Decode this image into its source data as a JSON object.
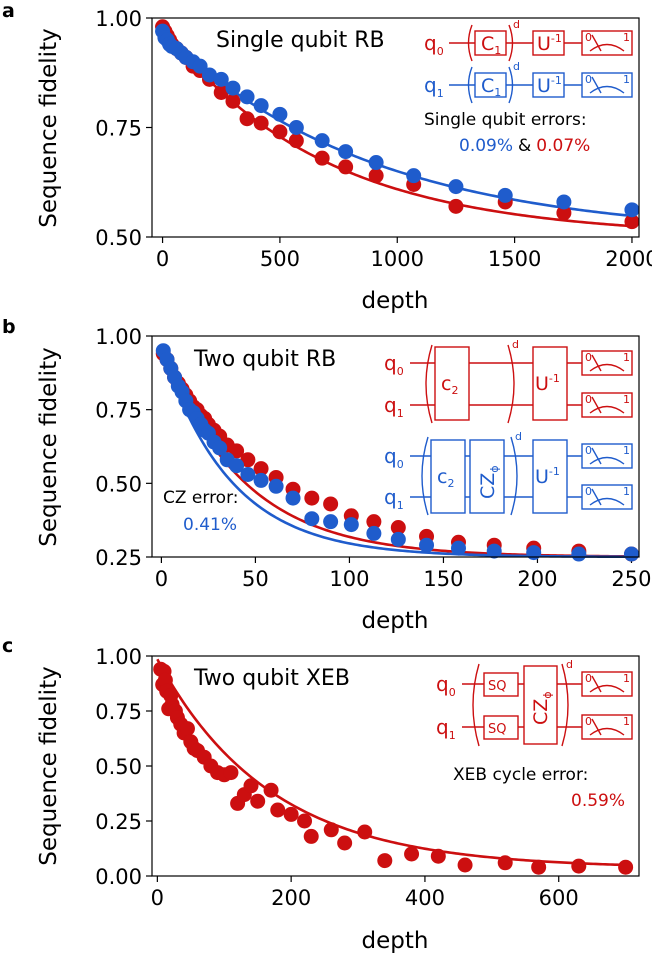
{
  "colors": {
    "red": "#cc0f10",
    "blue": "#1f5ccc",
    "black": "#000000"
  },
  "chart_data": [
    {
      "panel_label": "a",
      "type": "scatter",
      "title": "Single qubit RB",
      "xlabel": "depth",
      "ylabel": "Sequence fidelity",
      "xlim": [
        -45,
        2030
      ],
      "ylim": [
        0.5,
        1.0
      ],
      "xticks": [
        0,
        500,
        1000,
        1500,
        2000
      ],
      "yticks": [
        0.5,
        0.75,
        1.0
      ],
      "xtick_labels": [
        "0",
        "500",
        "1000",
        "1500",
        "2000"
      ],
      "ytick_labels": [
        "0.50",
        "0.75",
        "1.00"
      ],
      "grid": false,
      "series": [
        {
          "color": "red",
          "fit": "exponential",
          "fit_params": {
            "A": 0.48,
            "p": 0.99852,
            "B": 0.5
          },
          "x": [
            0,
            10,
            20,
            30,
            40,
            60,
            80,
            100,
            130,
            160,
            200,
            250,
            300,
            360,
            420,
            500,
            570,
            680,
            780,
            910,
            1070,
            1250,
            1460,
            1710,
            2000
          ],
          "y": [
            0.98,
            0.97,
            0.96,
            0.95,
            0.94,
            0.93,
            0.92,
            0.91,
            0.89,
            0.88,
            0.86,
            0.83,
            0.81,
            0.77,
            0.76,
            0.74,
            0.72,
            0.68,
            0.66,
            0.64,
            0.62,
            0.57,
            0.58,
            0.555,
            0.535
          ]
        },
        {
          "color": "blue",
          "fit": "exponential",
          "fit_params": {
            "A": 0.47,
            "p": 0.99886,
            "B": 0.5
          },
          "x": [
            0,
            10,
            20,
            30,
            40,
            60,
            80,
            100,
            130,
            160,
            200,
            250,
            300,
            360,
            420,
            500,
            570,
            680,
            780,
            910,
            1070,
            1250,
            1460,
            1710,
            2000
          ],
          "y": [
            0.97,
            0.955,
            0.95,
            0.94,
            0.935,
            0.93,
            0.92,
            0.91,
            0.9,
            0.89,
            0.87,
            0.86,
            0.84,
            0.82,
            0.8,
            0.78,
            0.75,
            0.72,
            0.695,
            0.67,
            0.64,
            0.615,
            0.595,
            0.58,
            0.562
          ]
        }
      ],
      "annotations": {
        "circuit": {
          "q0": "q",
          "q0_sub": "0",
          "q1": "q",
          "q1_sub": "1",
          "gate": "C",
          "gate_sub": "1",
          "depth": "d",
          "inverse": "U",
          "inverse_sup": "-1",
          "meter_zero": "0",
          "meter_one": "1"
        },
        "errors_label": "Single qubit errors:",
        "error_blue": "0.09%",
        "error_sep": "&",
        "error_red": "0.07%"
      }
    },
    {
      "panel_label": "b",
      "type": "scatter",
      "title": "Two qubit RB",
      "xlabel": "depth",
      "ylabel": "Sequence fidelity",
      "xlim": [
        -5,
        254
      ],
      "ylim": [
        0.25,
        1.0
      ],
      "xticks": [
        0,
        50,
        100,
        150,
        200,
        250
      ],
      "yticks": [
        0.25,
        0.5,
        0.75,
        1.0
      ],
      "xtick_labels": [
        "0",
        "50",
        "100",
        "150",
        "200",
        "250"
      ],
      "ytick_labels": [
        "0.25",
        "0.50",
        "0.75",
        "1.00"
      ],
      "grid": false,
      "series": [
        {
          "color": "red",
          "fit": "exponential",
          "fit_params": {
            "A": 0.72,
            "p": 0.9767,
            "B": 0.25
          },
          "x": [
            1,
            3,
            5,
            7,
            9,
            11,
            13,
            15,
            17,
            19,
            21,
            23,
            25,
            28,
            31,
            35,
            40,
            46,
            53,
            61,
            70,
            80,
            90,
            101,
            113,
            126,
            141,
            158,
            177,
            198,
            222,
            250
          ],
          "y": [
            0.94,
            0.92,
            0.89,
            0.86,
            0.84,
            0.82,
            0.8,
            0.78,
            0.76,
            0.75,
            0.73,
            0.72,
            0.7,
            0.68,
            0.66,
            0.63,
            0.61,
            0.58,
            0.55,
            0.52,
            0.48,
            0.45,
            0.43,
            0.39,
            0.37,
            0.35,
            0.32,
            0.3,
            0.29,
            0.28,
            0.27,
            0.26
          ]
        },
        {
          "color": "blue",
          "fit": "exponential",
          "fit_params": {
            "A": 0.71,
            "p": 0.973,
            "B": 0.25
          },
          "x": [
            1,
            3,
            5,
            7,
            9,
            11,
            13,
            15,
            17,
            19,
            21,
            23,
            25,
            28,
            31,
            35,
            40,
            46,
            53,
            61,
            70,
            80,
            90,
            101,
            113,
            126,
            141,
            158,
            177,
            198,
            222,
            250
          ],
          "y": [
            0.95,
            0.92,
            0.89,
            0.86,
            0.83,
            0.81,
            0.78,
            0.75,
            0.74,
            0.72,
            0.7,
            0.68,
            0.67,
            0.64,
            0.62,
            0.58,
            0.56,
            0.53,
            0.51,
            0.49,
            0.45,
            0.38,
            0.37,
            0.36,
            0.33,
            0.31,
            0.29,
            0.28,
            0.27,
            0.265,
            0.26,
            0.26
          ]
        }
      ],
      "annotations": {
        "circuit": {
          "q0": "q",
          "q0_sub": "0",
          "q1": "q",
          "q1_sub": "1",
          "gate": "c",
          "gate_sub": "2",
          "cz": "CZ",
          "cz_sub": "ϕ",
          "depth": "d",
          "inverse": "U",
          "inverse_sup": "-1",
          "meter_zero": "0",
          "meter_one": "1"
        },
        "error_label": "CZ error:",
        "error_value": "0.41%"
      }
    },
    {
      "panel_label": "c",
      "type": "scatter",
      "title": "Two qubit XEB",
      "xlabel": "depth",
      "ylabel": "Sequence fidelity",
      "xlim": [
        -8,
        720
      ],
      "ylim": [
        0.0,
        1.0
      ],
      "xticks": [
        0,
        200,
        400,
        600
      ],
      "yticks": [
        0.0,
        0.25,
        0.5,
        0.75,
        1.0
      ],
      "xtick_labels": [
        "0",
        "200",
        "400",
        "600"
      ],
      "ytick_labels": [
        "0.00",
        "0.25",
        "0.50",
        "0.75",
        "1.00"
      ],
      "grid": false,
      "series": [
        {
          "color": "red",
          "fit": "exponential",
          "fit_params": {
            "A": 0.95,
            "p": 0.9941,
            "B": 0.035
          },
          "x": [
            5,
            8,
            10,
            12,
            14,
            17,
            20,
            22,
            24,
            27,
            30,
            35,
            40,
            45,
            50,
            55,
            60,
            70,
            80,
            90,
            100,
            110,
            120,
            130,
            140,
            150,
            170,
            180,
            200,
            220,
            230,
            260,
            280,
            310,
            340,
            380,
            420,
            460,
            520,
            570,
            630,
            700
          ],
          "y": [
            0.94,
            0.87,
            0.93,
            0.89,
            0.84,
            0.76,
            0.82,
            0.78,
            0.76,
            0.75,
            0.72,
            0.69,
            0.65,
            0.67,
            0.61,
            0.58,
            0.57,
            0.54,
            0.5,
            0.47,
            0.46,
            0.47,
            0.33,
            0.37,
            0.41,
            0.34,
            0.39,
            0.3,
            0.28,
            0.25,
            0.18,
            0.21,
            0.15,
            0.2,
            0.07,
            0.1,
            0.09,
            0.05,
            0.06,
            0.04,
            0.045,
            0.04
          ]
        }
      ],
      "annotations": {
        "circuit": {
          "q0": "q",
          "q0_sub": "0",
          "q1": "q",
          "q1_sub": "1",
          "sq": "SQ",
          "cz": "CZ",
          "cz_sub": "ϕ",
          "depth": "d",
          "meter_zero": "0",
          "meter_one": "1"
        },
        "error_label": "XEB cycle error:",
        "error_value": "0.59%"
      }
    }
  ]
}
